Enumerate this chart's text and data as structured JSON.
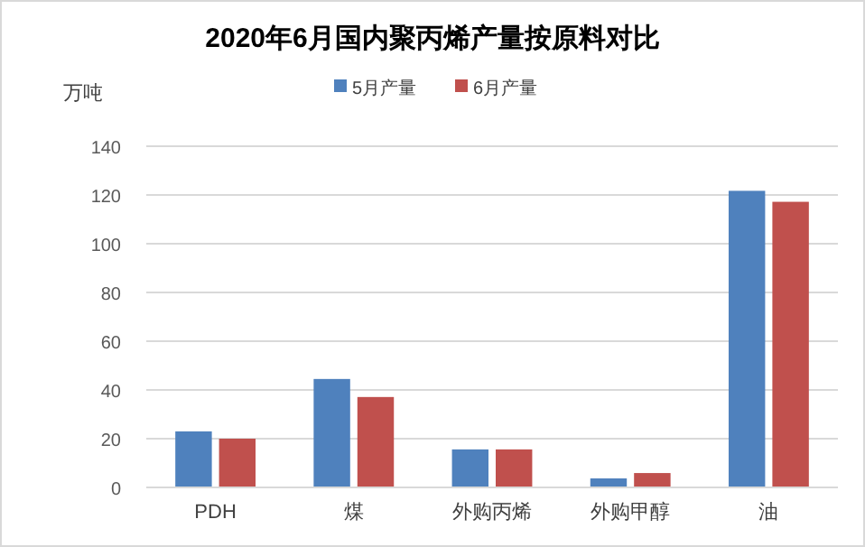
{
  "chart_data": {
    "type": "bar",
    "title": "2020年6月国内聚丙烯产量按原料对比",
    "ylabel": "万吨",
    "categories": [
      "PDH",
      "煤",
      "外购丙烯",
      "外购甲醇",
      "油"
    ],
    "series": [
      {
        "name": "5月产量",
        "color": "#4f81bd",
        "values": [
          23,
          44.5,
          15.6,
          3.7,
          121.7
        ]
      },
      {
        "name": "6月产量",
        "color": "#c0504d",
        "values": [
          20,
          37.1,
          15.6,
          5.9,
          117.2
        ]
      }
    ],
    "ylim": [
      0,
      140
    ],
    "yticks": [
      0,
      20,
      40,
      60,
      80,
      100,
      120,
      140
    ],
    "grid": "y",
    "legend": "top"
  }
}
